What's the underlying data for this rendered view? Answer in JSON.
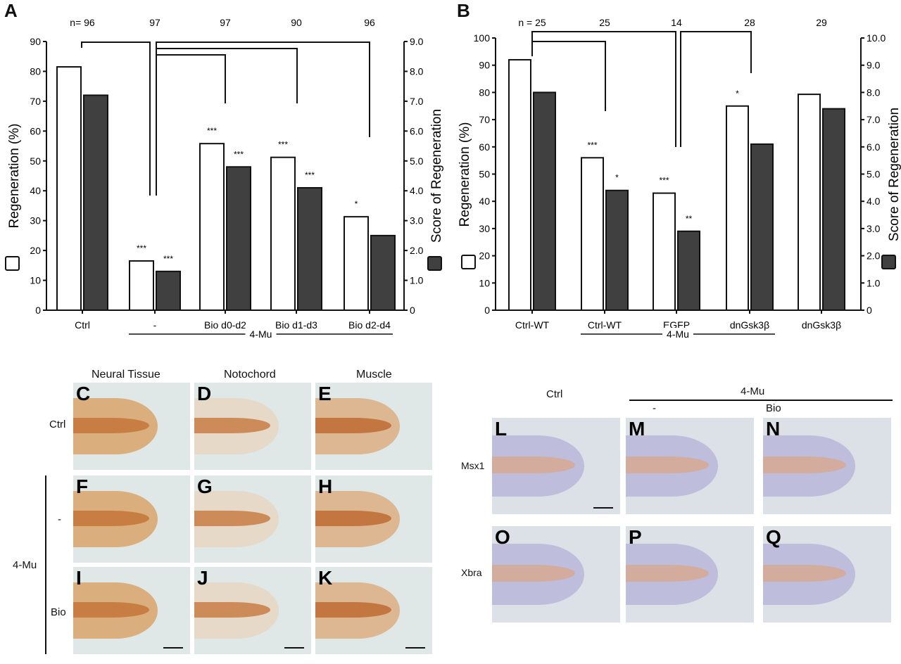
{
  "chart_data": [
    {
      "panel": "A",
      "type": "bar",
      "categories": [
        "Ctrl",
        "-",
        "Bio d0-d2",
        "Bio d1-d3",
        "Bio d2-d4"
      ],
      "n_labels": [
        "n= 96",
        "97",
        "97",
        "90",
        "96"
      ],
      "group_label": "4-Mu",
      "group_members": [
        "-",
        "Bio d0-d2",
        "Bio d1-d3",
        "Bio d2-d4"
      ],
      "series": [
        {
          "name": "Regeneration (%)",
          "axis": "left",
          "color": "#ffffff",
          "values": [
            81.5,
            16.5,
            55.8,
            51.2,
            31.3
          ],
          "significance": [
            "",
            "***",
            "***",
            "***",
            "*"
          ]
        },
        {
          "name": "Score of Regeneration",
          "axis": "right",
          "color": "#404040",
          "values": [
            7.2,
            1.3,
            4.8,
            4.1,
            2.5
          ],
          "significance": [
            "",
            "***",
            "***",
            "***",
            ""
          ]
        }
      ],
      "ylabel": "Regeneration (%)",
      "y2label": "Score of Regeneration",
      "ylim": [
        0,
        90
      ],
      "y2lim": [
        0,
        9.0
      ],
      "yticks": [
        "0",
        "10",
        "20",
        "30",
        "40",
        "50",
        "60",
        "70",
        "80",
        "90"
      ],
      "y2ticks": [
        "0",
        "1.0",
        "2.0",
        "3.0",
        "4.0",
        "5.0",
        "6.0",
        "7.0",
        "8.0",
        "9.0"
      ],
      "comparisons": [
        [
          "Ctrl",
          "-"
        ],
        [
          "-",
          "Bio d0-d2"
        ],
        [
          "-",
          "Bio d1-d3"
        ],
        [
          "-",
          "Bio d2-d4"
        ]
      ]
    },
    {
      "panel": "B",
      "type": "bar",
      "categories": [
        "Ctrl-WT",
        "Ctrl-WT",
        "EGFP",
        "dnGsk3β",
        "dnGsk3β"
      ],
      "n_labels": [
        "n = 25",
        "25",
        "14",
        "28",
        "29"
      ],
      "group_label": "4-Mu",
      "group_members": [
        "Ctrl-WT",
        "EGFP",
        "dnGsk3β"
      ],
      "series": [
        {
          "name": "Regeneration (%)",
          "axis": "left",
          "color": "#ffffff",
          "values": [
            92,
            56,
            43,
            75,
            79.3
          ],
          "significance": [
            "",
            "***",
            "***",
            "*",
            ""
          ]
        },
        {
          "name": "Score of Regeneration",
          "axis": "right",
          "color": "#404040",
          "values": [
            8.0,
            4.4,
            2.9,
            6.1,
            7.4
          ],
          "significance": [
            "",
            "*",
            "**",
            "",
            ""
          ]
        }
      ],
      "ylabel": "Regeneration (%)",
      "y2label": "Score of Regeneration",
      "ylim": [
        0,
        100
      ],
      "y2lim": [
        0,
        10.0
      ],
      "yticks": [
        "0",
        "10",
        "20",
        "30",
        "40",
        "50",
        "60",
        "70",
        "80",
        "90",
        "100"
      ],
      "y2ticks": [
        "0",
        "1.0",
        "2.0",
        "3.0",
        "4.0",
        "5.0",
        "6.0",
        "7.0",
        "8.0",
        "9.0",
        "10.0"
      ],
      "comparisons": [
        [
          "Ctrl-WT",
          "Ctrl-WT (4-Mu)"
        ],
        [
          "Ctrl-WT",
          "EGFP"
        ],
        [
          "EGFP",
          "dnGsk3β"
        ]
      ]
    }
  ],
  "panels": {
    "A": "A",
    "B": "B"
  },
  "photos_left": {
    "columns": [
      "Neural Tissue",
      "Notochord",
      "Muscle"
    ],
    "rows": [
      "Ctrl",
      "-",
      "Bio"
    ],
    "group_label": "4-Mu",
    "letters": [
      "C",
      "D",
      "E",
      "F",
      "G",
      "H",
      "I",
      "J",
      "K"
    ]
  },
  "photos_right": {
    "columns": [
      "Ctrl",
      "-",
      "Bio"
    ],
    "group_label": "4-Mu",
    "rows": [
      "Msx1",
      "Xbra"
    ],
    "letters": [
      "L",
      "M",
      "N",
      "O",
      "P",
      "Q"
    ]
  }
}
